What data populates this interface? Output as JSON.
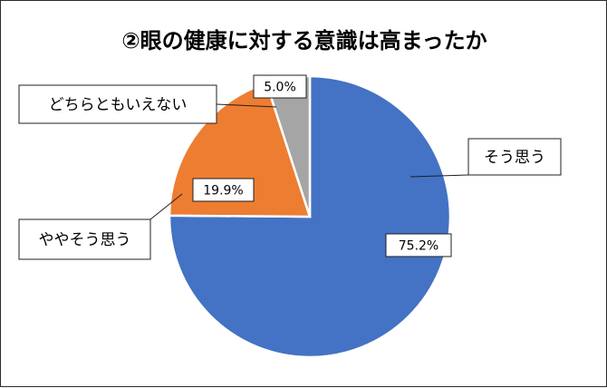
{
  "chart_data": {
    "type": "pie",
    "title": "②眼の健康に対する意識は高まったか",
    "categories": [
      "そう思う",
      "ややそう思う",
      "どちらともいえない"
    ],
    "values": [
      75.2,
      19.9,
      5.0
    ],
    "value_labels": [
      "75.2%",
      "19.9%",
      "5.0%"
    ],
    "colors": [
      "#4472C4",
      "#ED7D31",
      "#A5A5A5"
    ],
    "start_angle_deg": 0,
    "direction": "clockwise",
    "legend": "none (callout labels)"
  }
}
